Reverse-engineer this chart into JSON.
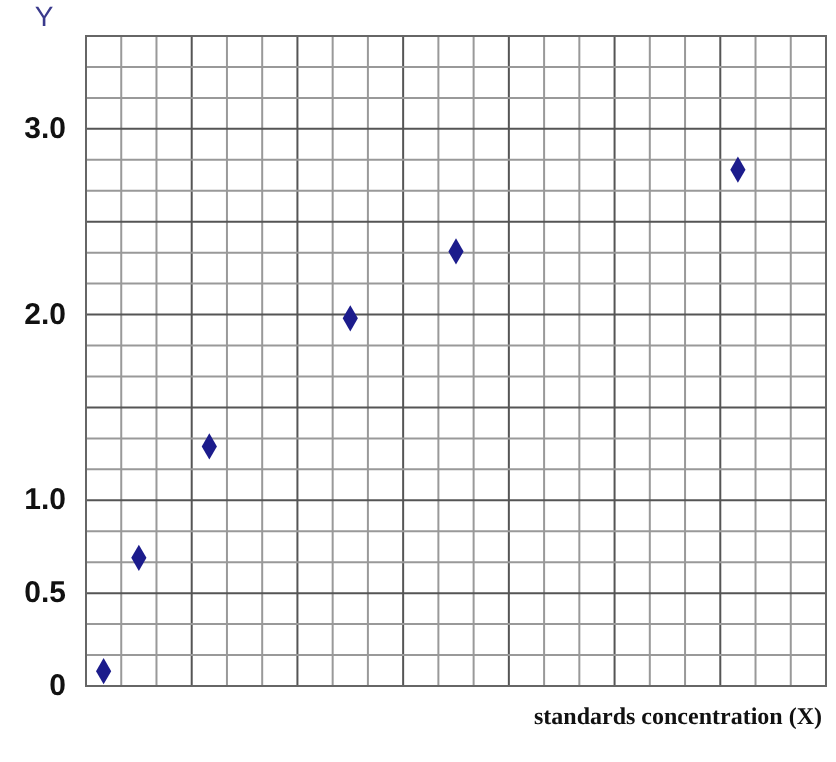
{
  "chart_data": {
    "type": "scatter",
    "xlabel": "standards concentration (X)",
    "ylabel": "Y",
    "categories": [
      null,
      null,
      null,
      null,
      null,
      null,
      null,
      null,
      null,
      null,
      null,
      null,
      null,
      null,
      null,
      null,
      null,
      null,
      null,
      null,
      null
    ],
    "values": [
      0.08,
      0.69,
      null,
      1.29,
      null,
      null,
      null,
      1.98,
      null,
      null,
      2.34,
      null,
      null,
      null,
      null,
      null,
      null,
      null,
      2.78,
      null,
      null
    ],
    "color": "#1c1c8c",
    "marker": "diamond",
    "ylim": [
      0,
      3.5
    ],
    "yticks": [
      {
        "value": 0,
        "label": "0"
      },
      {
        "value": 0.1667,
        "label": null
      },
      {
        "value": 0.3333,
        "label": null
      },
      {
        "value": 0.5,
        "label": "0.5"
      },
      {
        "value": 0.6667,
        "label": null
      },
      {
        "value": 0.8333,
        "label": null
      },
      {
        "value": 1,
        "label": "1.0"
      },
      {
        "value": 1.1667,
        "label": null
      },
      {
        "value": 1.3333,
        "label": null
      },
      {
        "value": 1.5,
        "label": null
      },
      {
        "value": 1.6667,
        "label": null
      },
      {
        "value": 1.8333,
        "label": null
      },
      {
        "value": 2,
        "label": "2.0"
      },
      {
        "value": 2.1667,
        "label": null
      },
      {
        "value": 2.3333,
        "label": null
      },
      {
        "value": 2.5,
        "label": null
      },
      {
        "value": 2.6667,
        "label": null
      },
      {
        "value": 2.8333,
        "label": null
      },
      {
        "value": 3,
        "label": "3.0"
      },
      {
        "value": 3.1667,
        "label": null
      },
      {
        "value": 3.3333,
        "label": null
      },
      {
        "value": 3.5,
        "label": null
      }
    ],
    "grid": true,
    "tick_labels": "y"
  }
}
